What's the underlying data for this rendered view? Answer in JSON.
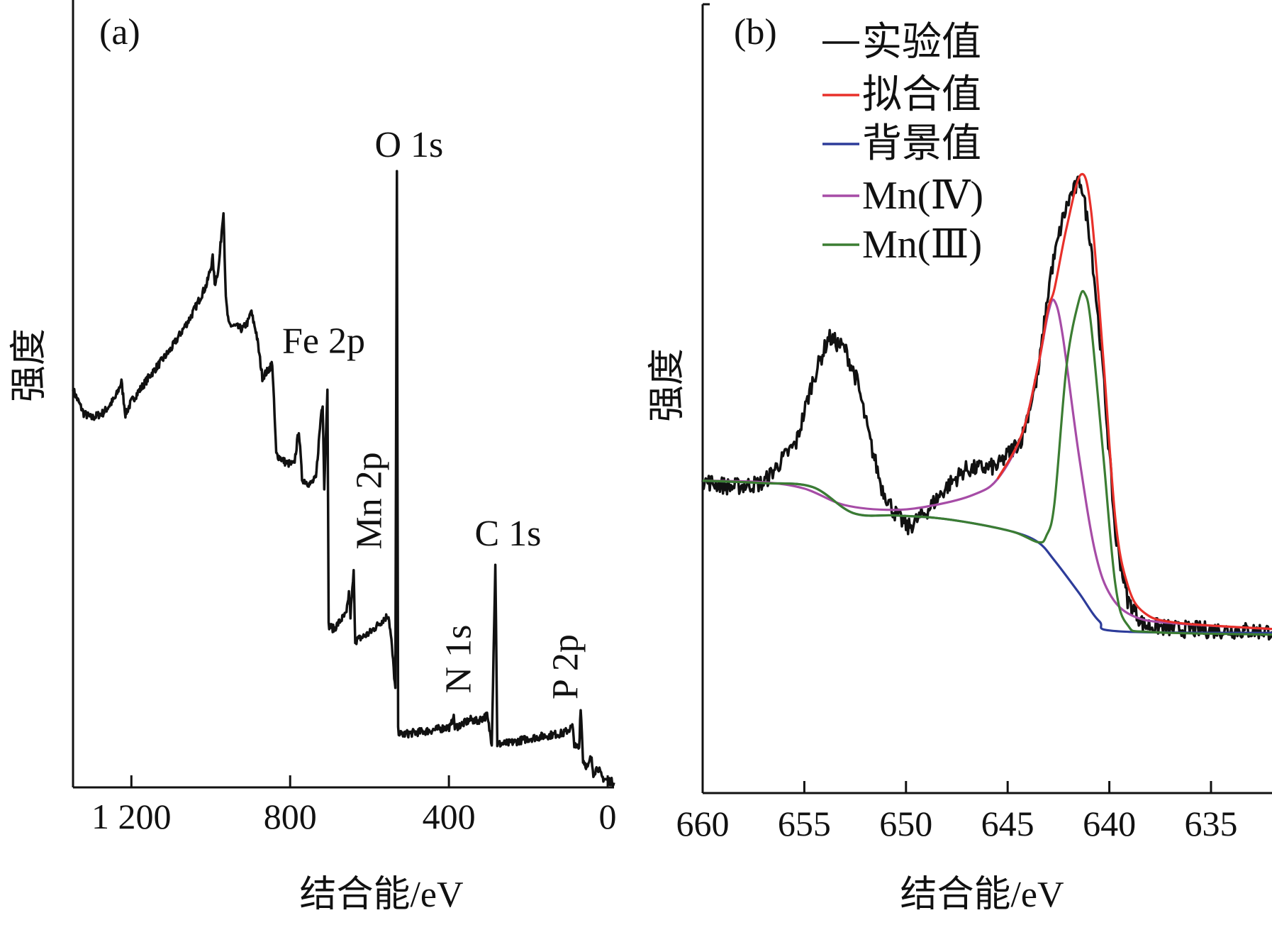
{
  "chart_data": [
    {
      "type": "line",
      "panel_label": "(a)",
      "xlabel": "结合能/eV",
      "ylabel": "强度",
      "xlim": [
        1347,
        -16
      ],
      "ylim": [
        0,
        100
      ],
      "x_reversed": true,
      "xticks": [
        1200,
        800,
        400,
        0
      ],
      "xtick_labels": [
        "1 200",
        "800",
        "400",
        "0"
      ],
      "grid": false,
      "annotations": [
        {
          "text": "O 1s",
          "x": 587,
          "y": 80.1
        },
        {
          "text": "Fe 2p",
          "x": 820,
          "y": 55.2
        },
        {
          "text": "Mn 2p",
          "x": 571,
          "y": 36.4
        },
        {
          "text": "C 1s",
          "x": 335,
          "y": 30.7
        },
        {
          "text": "N 1s",
          "x": 346,
          "y": 16.3
        },
        {
          "text": "P 2p",
          "x": 76,
          "y": 15.3
        }
      ],
      "series": [
        {
          "color": "#111111",
          "points": [
            [
              1347,
              50.5
            ],
            [
              1320,
              47.5
            ],
            [
              1300,
              46.9
            ],
            [
              1270,
              47.6
            ],
            [
              1240,
              49.5
            ],
            [
              1225,
              51.5
            ],
            [
              1215,
              47.4
            ],
            [
              1200,
              49.0
            ],
            [
              1150,
              52.5
            ],
            [
              1100,
              55.7
            ],
            [
              1050,
              59.8
            ],
            [
              1010,
              63.9
            ],
            [
              998,
              66.5
            ],
            [
              995,
              67.2
            ],
            [
              990,
              63.9
            ],
            [
              980,
              66.0
            ],
            [
              968,
              73.4
            ],
            [
              962,
              62.0
            ],
            [
              955,
              58.8
            ],
            [
              920,
              58.2
            ],
            [
              905,
              59.2
            ],
            [
              899,
              60.5
            ],
            [
              885,
              57.7
            ],
            [
              870,
              52.1
            ],
            [
              855,
              53.0
            ],
            [
              845,
              53.9
            ],
            [
              835,
              42.3
            ],
            [
              810,
              41.2
            ],
            [
              790,
              41.0
            ],
            [
              778,
              45.4
            ],
            [
              770,
              39.2
            ],
            [
              750,
              38.5
            ],
            [
              735,
              39.2
            ],
            [
              722,
              47.5
            ],
            [
              718,
              48.8
            ],
            [
              714,
              38.0
            ],
            [
              706,
              51.0
            ],
            [
              703,
              20.6
            ],
            [
              690,
              20.1
            ],
            [
              670,
              21.4
            ],
            [
              658,
              22.0
            ],
            [
              652,
              24.7
            ],
            [
              648,
              21.8
            ],
            [
              640,
              27.3
            ],
            [
              636,
              18.6
            ],
            [
              600,
              19.6
            ],
            [
              570,
              21.1
            ],
            [
              552,
              21.9
            ],
            [
              545,
              18.6
            ],
            [
              535,
              12.4
            ],
            [
              531,
              77.8
            ],
            [
              528,
              7.2
            ],
            [
              520,
              6.7
            ],
            [
              480,
              7.0
            ],
            [
              450,
              7.2
            ],
            [
              395,
              7.7
            ],
            [
              389,
              9.3
            ],
            [
              385,
              7.6
            ],
            [
              360,
              8.2
            ],
            [
              345,
              8.6
            ],
            [
              330,
              8.4
            ],
            [
              304,
              9.1
            ],
            [
              292,
              5.7
            ],
            [
              283,
              28.4
            ],
            [
              278,
              5.5
            ],
            [
              250,
              5.6
            ],
            [
              200,
              6.2
            ],
            [
              150,
              6.6
            ],
            [
              110,
              6.9
            ],
            [
              89,
              7.7
            ],
            [
              84,
              5.6
            ],
            [
              80,
              4.9
            ],
            [
              76,
              5.2
            ],
            [
              72,
              5.0
            ],
            [
              68,
              10.3
            ],
            [
              62,
              3.5
            ],
            [
              50,
              2.4
            ],
            [
              42,
              3.9
            ],
            [
              36,
              1.8
            ],
            [
              25,
              2.6
            ],
            [
              15,
              1.3
            ],
            [
              5,
              1.0
            ],
            [
              -16,
              0.6
            ]
          ]
        }
      ]
    },
    {
      "type": "line",
      "panel_label": "(b)",
      "xlabel": "结合能/eV",
      "ylabel": "强度",
      "xlim": [
        660,
        632
      ],
      "ylim": [
        0,
        100
      ],
      "x_reversed": true,
      "xticks": [
        660,
        655,
        650,
        645,
        640,
        635
      ],
      "xtick_labels": [
        "660",
        "655",
        "650",
        "645",
        "640",
        "635"
      ],
      "grid": false,
      "legend_position": "top-left",
      "series": [
        {
          "name": "实验值",
          "color": "#111111",
          "points": [
            [
              660,
              39.6
            ],
            [
              658.6,
              38.8
            ],
            [
              657,
              39.3
            ],
            [
              656.2,
              41.9
            ],
            [
              655.4,
              44.4
            ],
            [
              654.6,
              52.2
            ],
            [
              653.8,
              57.8
            ],
            [
              653.0,
              56.3
            ],
            [
              652.4,
              52.2
            ],
            [
              651.8,
              45.0
            ],
            [
              651.2,
              38.8
            ],
            [
              650.6,
              35.7
            ],
            [
              649.9,
              33.6
            ],
            [
              649.0,
              35.7
            ],
            [
              648.0,
              38.8
            ],
            [
              647.1,
              41.0
            ],
            [
              645.5,
              41.4
            ],
            [
              644.3,
              45.0
            ],
            [
              643.5,
              53.2
            ],
            [
              642.9,
              65.6
            ],
            [
              642.3,
              72.7
            ],
            [
              641.9,
              75.8
            ],
            [
              641.4,
              77.7
            ],
            [
              640.9,
              69.7
            ],
            [
              640.3,
              53.2
            ],
            [
              639.7,
              32.7
            ],
            [
              639.1,
              24.5
            ],
            [
              638.3,
              21.3
            ],
            [
              636.7,
              20.8
            ],
            [
              632,
              20.5
            ]
          ]
        },
        {
          "name": "拟合值",
          "color": "#e8302a",
          "points": [
            [
              645.5,
              39.8
            ],
            [
              644.3,
              45.5
            ],
            [
              643.5,
              54.2
            ],
            [
              643.0,
              61.5
            ],
            [
              642.7,
              63.9
            ],
            [
              642.1,
              71.7
            ],
            [
              641.4,
              78.4
            ],
            [
              640.9,
              73.9
            ],
            [
              640.3,
              55.2
            ],
            [
              639.7,
              34.7
            ],
            [
              639.1,
              26.4
            ],
            [
              638.3,
              22.9
            ],
            [
              636.7,
              21.6
            ],
            [
              632,
              20.8
            ]
          ]
        },
        {
          "name": "背景值",
          "color": "#2d3c9a",
          "points": [
            [
              660,
              39.6
            ],
            [
              657,
              39.3
            ],
            [
              654.6,
              38.8
            ],
            [
              652.6,
              35.5
            ],
            [
              650.6,
              35.2
            ],
            [
              648.6,
              34.9
            ],
            [
              646.7,
              34.2
            ],
            [
              644.7,
              33.1
            ],
            [
              643.5,
              31.8
            ],
            [
              642.7,
              29.5
            ],
            [
              641.5,
              25.4
            ],
            [
              640.5,
              21.8
            ],
            [
              639.5,
              20.5
            ],
            [
              632,
              20.3
            ]
          ]
        },
        {
          "name": "Mn(Ⅳ)",
          "color": "#a64ca6",
          "points": [
            [
              660,
              39.6
            ],
            [
              657,
              39.4
            ],
            [
              655,
              38.6
            ],
            [
              653,
              36.5
            ],
            [
              650.6,
              35.9
            ],
            [
              648.6,
              36.5
            ],
            [
              646.7,
              37.8
            ],
            [
              645.5,
              39.8
            ],
            [
              644.3,
              45.5
            ],
            [
              643.5,
              54.2
            ],
            [
              643.0,
              60.9
            ],
            [
              642.7,
              62.4
            ],
            [
              642.3,
              58.1
            ],
            [
              641.5,
              42.9
            ],
            [
              640.7,
              30.6
            ],
            [
              639.9,
              24.9
            ],
            [
              638.7,
              22.3
            ],
            [
              636.7,
              21.5
            ],
            [
              632,
              20.8
            ]
          ]
        },
        {
          "name": "Mn(Ⅲ)",
          "color": "#3b7d32",
          "points": [
            [
              660,
              39.6
            ],
            [
              657,
              39.3
            ],
            [
              654.6,
              38.8
            ],
            [
              652.6,
              35.5
            ],
            [
              650.6,
              35.2
            ],
            [
              648.6,
              34.9
            ],
            [
              646.7,
              34.2
            ],
            [
              644.7,
              33.1
            ],
            [
              643.5,
              31.8
            ],
            [
              643.1,
              32.6
            ],
            [
              642.7,
              36.7
            ],
            [
              642.1,
              54.2
            ],
            [
              641.5,
              62.4
            ],
            [
              641.2,
              63.3
            ],
            [
              640.9,
              59.4
            ],
            [
              640.3,
              42.9
            ],
            [
              639.7,
              26.4
            ],
            [
              639.1,
              21.3
            ],
            [
              637.9,
              20.4
            ],
            [
              632,
              20.1
            ]
          ]
        }
      ]
    }
  ]
}
